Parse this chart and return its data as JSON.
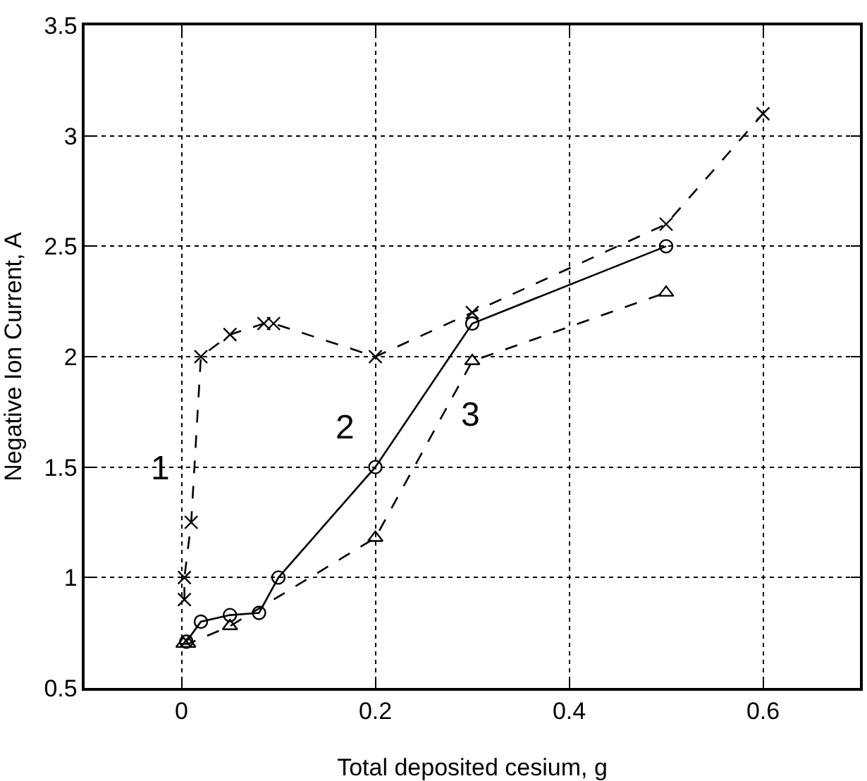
{
  "chart_data": {
    "type": "line",
    "xlabel": "Total deposited cesium, g",
    "ylabel": "Negative Ion Current, A",
    "xlim": [
      -0.1,
      0.7
    ],
    "xticks": [
      0,
      0.2,
      0.4,
      0.6
    ],
    "ylim": [
      0.5,
      3.5
    ],
    "yticks": [
      0.5,
      1,
      1.5,
      2,
      2.5,
      3,
      3.5
    ],
    "grid": true,
    "legend": false,
    "series": [
      {
        "name": "1",
        "color": "#000000",
        "marker": "cross",
        "line_style": "dashed",
        "x": [
          0.003,
          0.003,
          0.01,
          0.02,
          0.05,
          0.085,
          0.095,
          0.2,
          0.3,
          0.5,
          0.6
        ],
        "values": [
          0.9,
          1.0,
          1.25,
          2.0,
          2.1,
          2.15,
          2.15,
          2.0,
          2.2,
          2.6,
          3.1
        ]
      },
      {
        "name": "2",
        "color": "#000000",
        "marker": "circle",
        "line_style": "solid",
        "x": [
          0.005,
          0.02,
          0.05,
          0.08,
          0.1,
          0.2,
          0.3,
          0.5
        ],
        "values": [
          0.71,
          0.8,
          0.83,
          0.84,
          1.0,
          1.5,
          2.15,
          2.5
        ]
      },
      {
        "name": "3",
        "color": "#000000",
        "marker": "triangle",
        "line_style": "dashed",
        "x": [
          0.002,
          0.007,
          0.05,
          0.2,
          0.3,
          0.5
        ],
        "values": [
          0.7,
          0.7,
          0.78,
          1.18,
          1.98,
          2.29
        ]
      }
    ]
  }
}
